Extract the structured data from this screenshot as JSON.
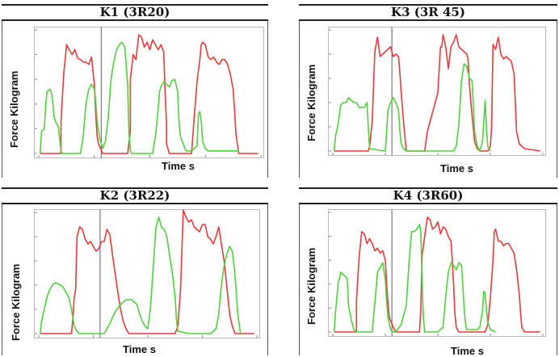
{
  "chart_data": [
    {
      "id": "k1",
      "type": "line",
      "title": "K1 (3R20)",
      "xlabel": "Time s",
      "ylabel": "Force Kilogram",
      "ylim": [
        0,
        500
      ],
      "xlim": [
        0,
        8
      ],
      "grid": false,
      "series": [
        {
          "color": "#e83a3a",
          "x": [
            0.05,
            0.8,
            0.8,
            0.9,
            1.0,
            1.1,
            1.2,
            1.3,
            1.4,
            1.5,
            1.6,
            1.7,
            1.8,
            1.9,
            2.0,
            2.05,
            2.1,
            2.15,
            2.3,
            2.4,
            3.2,
            3.3,
            3.3,
            3.4,
            3.5,
            3.6,
            3.7,
            3.8,
            3.9,
            4.0,
            4.1,
            4.2,
            4.3,
            4.4,
            4.5,
            4.55,
            4.6,
            4.6,
            4.7,
            5.5,
            5.6,
            5.7,
            5.8,
            5.85,
            5.9,
            6.0,
            6.1,
            6.2,
            6.3,
            6.4,
            6.5,
            6.6,
            6.7,
            6.8,
            6.9,
            7.0,
            7.05,
            7.1,
            7.2,
            7.9
          ],
          "y": [
            0,
            0,
            130,
            320,
            440,
            420,
            400,
            420,
            385,
            380,
            370,
            370,
            360,
            390,
            280,
            160,
            70,
            40,
            0,
            0,
            0,
            90,
            300,
            400,
            380,
            480,
            470,
            430,
            450,
            420,
            460,
            440,
            420,
            440,
            410,
            250,
            120,
            40,
            0,
            0,
            150,
            290,
            380,
            440,
            450,
            440,
            390,
            380,
            390,
            370,
            360,
            380,
            380,
            360,
            320,
            260,
            180,
            80,
            0,
            0
          ]
        },
        {
          "color": "#4fd13c",
          "x": [
            0.05,
            0.1,
            0.2,
            0.25,
            0.3,
            0.4,
            0.45,
            0.5,
            0.55,
            0.6,
            0.7,
            0.75,
            0.8,
            0.85,
            0.9,
            1.0,
            1.2,
            1.5,
            1.6,
            1.7,
            1.8,
            1.9,
            2.0,
            2.05,
            2.1,
            2.2,
            2.3,
            2.4,
            2.5,
            2.6,
            2.7,
            2.8,
            2.9,
            3.0,
            3.1,
            3.2,
            3.25,
            3.3,
            3.35,
            3.4,
            3.6,
            4.0,
            4.1,
            4.2,
            4.3,
            4.35,
            4.4,
            4.5,
            4.6,
            4.7,
            4.8,
            4.9,
            5.0,
            5.05,
            5.1,
            5.3,
            5.5,
            5.6,
            5.7,
            5.75,
            5.8,
            5.85,
            5.9,
            6.0,
            6.1,
            6.2,
            6.3,
            6.5,
            7.0,
            7.2
          ],
          "y": [
            0,
            90,
            100,
            200,
            250,
            260,
            250,
            210,
            150,
            130,
            110,
            60,
            10,
            0,
            0,
            0,
            0,
            0,
            70,
            200,
            260,
            280,
            260,
            210,
            130,
            60,
            20,
            50,
            140,
            300,
            370,
            420,
            440,
            450,
            430,
            280,
            80,
            10,
            0,
            0,
            0,
            0,
            0,
            70,
            180,
            250,
            270,
            290,
            280,
            270,
            295,
            300,
            250,
            130,
            70,
            10,
            10,
            20,
            30,
            160,
            170,
            130,
            50,
            20,
            10,
            10,
            10,
            10,
            10,
            10
          ]
        }
      ]
    },
    {
      "id": "k3",
      "type": "line",
      "title": "K3 (3R 45)",
      "xlabel": "Time s",
      "ylabel": "Force Kilogram",
      "ylim": [
        0,
        500
      ],
      "xlim": [
        0,
        8
      ],
      "grid": false,
      "series": [
        {
          "color": "#e83a3a",
          "x": [
            0.05,
            1.35,
            1.4,
            1.5,
            1.6,
            1.7,
            1.8,
            1.9,
            2.0,
            2.1,
            2.2,
            2.3,
            2.4,
            2.5,
            2.55,
            2.6,
            2.7,
            2.8,
            3.5,
            3.6,
            3.8,
            4.0,
            4.1,
            4.15,
            4.2,
            4.3,
            4.4,
            4.5,
            4.6,
            4.7,
            4.8,
            4.9,
            5.0,
            5.1,
            5.15,
            5.2,
            5.3,
            5.4,
            5.5,
            5.6,
            5.9,
            6.0,
            6.05,
            6.1,
            6.2,
            6.3,
            6.4,
            6.5,
            6.6,
            6.7,
            6.8,
            6.9,
            6.95,
            7.0,
            7.1,
            7.3,
            7.9
          ],
          "y": [
            0,
            0,
            20,
            120,
            410,
            470,
            390,
            400,
            410,
            420,
            430,
            390,
            400,
            390,
            330,
            250,
            110,
            0,
            0,
            80,
            160,
            240,
            430,
            430,
            480,
            430,
            340,
            430,
            450,
            480,
            430,
            420,
            410,
            400,
            380,
            280,
            150,
            40,
            10,
            0,
            0,
            20,
            100,
            440,
            420,
            470,
            400,
            380,
            390,
            380,
            370,
            320,
            200,
            80,
            30,
            10,
            0
          ]
        },
        {
          "color": "#4fd13c",
          "x": [
            0.05,
            0.1,
            0.2,
            0.3,
            0.4,
            0.5,
            0.6,
            0.7,
            0.8,
            0.9,
            1.0,
            1.1,
            1.2,
            1.3,
            1.35,
            1.4,
            2.0,
            2.1,
            2.2,
            2.3,
            2.4,
            2.5,
            2.55,
            2.6,
            2.7,
            2.8,
            4.6,
            4.7,
            4.8,
            4.9,
            5.0,
            5.1,
            5.2,
            5.3,
            5.35,
            5.4,
            5.5,
            5.55,
            5.6,
            5.7,
            5.75,
            5.8,
            5.85,
            5.9,
            6.0
          ],
          "y": [
            0,
            60,
            110,
            190,
            200,
            200,
            220,
            210,
            200,
            200,
            180,
            180,
            180,
            200,
            100,
            10,
            0,
            170,
            200,
            220,
            200,
            170,
            90,
            30,
            10,
            0,
            0,
            20,
            110,
            290,
            360,
            350,
            300,
            290,
            200,
            80,
            20,
            10,
            0,
            40,
            120,
            210,
            100,
            20,
            0
          ]
        }
      ]
    },
    {
      "id": "k2",
      "type": "line",
      "title": "K2 (3R22)",
      "xlabel": "Time s",
      "ylabel": "Force Kilogram",
      "ylim": [
        0,
        500
      ],
      "xlim": [
        0,
        8
      ],
      "grid": false,
      "series": [
        {
          "color": "#e83a3a",
          "x": [
            0.05,
            1.2,
            1.25,
            1.3,
            1.35,
            1.4,
            1.5,
            1.6,
            1.7,
            1.8,
            1.9,
            2.0,
            2.1,
            2.2,
            2.3,
            2.4,
            2.5,
            2.6,
            2.7,
            2.8,
            2.9,
            3.0,
            3.1,
            3.2,
            3.3,
            3.4,
            3.5,
            5.0,
            5.1,
            5.2,
            5.3,
            5.4,
            5.5,
            5.6,
            5.7,
            5.8,
            5.9,
            6.0,
            6.1,
            6.2,
            6.3,
            6.4,
            6.5,
            6.6,
            6.7,
            6.8,
            6.9,
            7.0,
            7.1,
            7.2,
            7.3,
            7.9
          ],
          "y": [
            0,
            0,
            60,
            150,
            180,
            400,
            440,
            430,
            390,
            370,
            380,
            360,
            340,
            350,
            380,
            380,
            430,
            410,
            330,
            250,
            170,
            100,
            50,
            20,
            0,
            0,
            0,
            0,
            30,
            180,
            510,
            480,
            460,
            470,
            440,
            430,
            420,
            450,
            450,
            400,
            390,
            370,
            400,
            440,
            370,
            300,
            190,
            80,
            30,
            0,
            0,
            0
          ]
        },
        {
          "color": "#4fd13c",
          "x": [
            0.05,
            0.1,
            0.2,
            0.3,
            0.4,
            0.5,
            0.6,
            0.7,
            0.8,
            0.9,
            1.0,
            1.1,
            1.2,
            1.3,
            1.4,
            1.5,
            2.0,
            2.4,
            2.6,
            2.8,
            3.0,
            3.2,
            3.4,
            3.6,
            3.7,
            3.8,
            3.9,
            4.0,
            4.1,
            4.2,
            4.3,
            4.4,
            4.5,
            4.6,
            4.7,
            4.8,
            4.9,
            5.0,
            5.05,
            5.1,
            5.5,
            6.0,
            6.3,
            6.5,
            6.6,
            6.7,
            6.8,
            6.9,
            7.0,
            7.1,
            7.2,
            7.3,
            7.4
          ],
          "y": [
            0,
            50,
            100,
            150,
            180,
            200,
            210,
            205,
            200,
            190,
            170,
            150,
            100,
            30,
            10,
            0,
            0,
            0,
            40,
            90,
            120,
            140,
            140,
            120,
            80,
            50,
            30,
            20,
            110,
            280,
            440,
            480,
            440,
            430,
            400,
            320,
            250,
            150,
            60,
            10,
            0,
            0,
            0,
            20,
            80,
            200,
            280,
            330,
            360,
            340,
            240,
            80,
            0
          ]
        }
      ]
    },
    {
      "id": "k4",
      "type": "line",
      "title": "K4 (3R60)",
      "xlabel": "Time s",
      "ylabel": "Force Kilogram",
      "ylim": [
        0,
        500
      ],
      "xlim": [
        0,
        8
      ],
      "grid": false,
      "series": [
        {
          "color": "#e83a3a",
          "x": [
            0.05,
            0.9,
            0.9,
            1.0,
            1.1,
            1.2,
            1.3,
            1.4,
            1.5,
            1.6,
            1.7,
            1.8,
            1.9,
            2.0,
            2.05,
            2.1,
            2.15,
            2.3,
            2.4,
            3.3,
            3.35,
            3.4,
            3.5,
            3.6,
            3.7,
            3.8,
            3.9,
            4.0,
            4.1,
            4.2,
            4.3,
            4.4,
            4.5,
            4.55,
            4.6,
            4.65,
            4.7,
            4.8,
            5.8,
            5.9,
            6.0,
            6.1,
            6.15,
            6.2,
            6.3,
            6.4,
            6.5,
            6.6,
            6.7,
            6.8,
            6.9,
            7.0,
            7.1,
            7.15,
            7.2,
            7.3,
            7.9
          ],
          "y": [
            0,
            0,
            130,
            310,
            420,
            410,
            370,
            390,
            370,
            340,
            350,
            330,
            340,
            300,
            200,
            120,
            60,
            20,
            0,
            0,
            90,
            320,
            400,
            480,
            470,
            430,
            440,
            460,
            410,
            440,
            430,
            400,
            380,
            300,
            200,
            80,
            20,
            0,
            0,
            30,
            140,
            300,
            420,
            430,
            380,
            380,
            360,
            370,
            370,
            350,
            330,
            260,
            160,
            80,
            20,
            0,
            0
          ]
        },
        {
          "color": "#4fd13c",
          "x": [
            0.05,
            0.1,
            0.2,
            0.3,
            0.4,
            0.5,
            0.55,
            0.6,
            0.7,
            0.75,
            0.8,
            0.9,
            1.0,
            1.5,
            1.6,
            1.7,
            1.8,
            1.9,
            2.0,
            2.05,
            2.1,
            2.2,
            2.3,
            2.4,
            2.6,
            2.8,
            2.9,
            3.0,
            3.1,
            3.2,
            3.3,
            3.35,
            3.4,
            3.45,
            3.5,
            4.0,
            4.2,
            4.3,
            4.4,
            4.5,
            4.6,
            4.7,
            4.8,
            4.9,
            4.95,
            5.0,
            5.05,
            5.1,
            5.3,
            5.5,
            5.6,
            5.7,
            5.75,
            5.8,
            5.85,
            5.9,
            6.0,
            6.2
          ],
          "y": [
            0,
            80,
            200,
            250,
            240,
            230,
            220,
            110,
            50,
            30,
            10,
            0,
            0,
            0,
            120,
            250,
            270,
            290,
            220,
            130,
            60,
            10,
            0,
            0,
            30,
            110,
            290,
            420,
            420,
            430,
            450,
            420,
            220,
            60,
            0,
            0,
            20,
            150,
            250,
            290,
            280,
            260,
            290,
            280,
            200,
            100,
            40,
            10,
            10,
            10,
            20,
            90,
            170,
            160,
            100,
            40,
            10,
            0
          ]
        }
      ]
    }
  ]
}
